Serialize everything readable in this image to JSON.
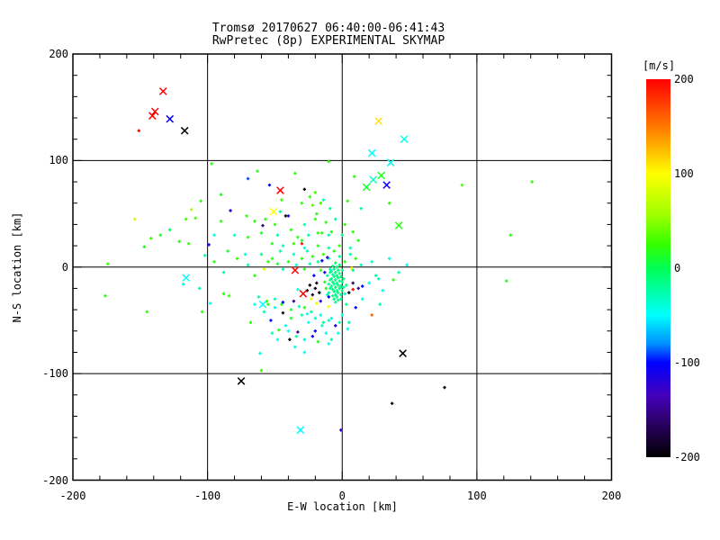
{
  "header": {
    "title_line1": "Tromsø 20170627 06:40:00-06:41:43",
    "title_line2": "RwPretec (8p) EXPERIMENTAL SKYMAP"
  },
  "chart_data": {
    "type": "scatter",
    "title": "Tromsø 20170627 06:40:00-06:41:43 / RwPretec (8p) EXPERIMENTAL SKYMAP",
    "xlabel": "E-W location [km]",
    "ylabel": "N-S location [km]",
    "xlim": [
      -200,
      200
    ],
    "ylim": [
      -200,
      200
    ],
    "xticks": [
      -200,
      -100,
      0,
      100,
      200
    ],
    "yticks": [
      200,
      100,
      0,
      -100,
      -200
    ],
    "minor_tick_step": 20,
    "grid_values": [
      -100,
      0,
      100
    ],
    "grid": "on",
    "background": "#ffffff",
    "axis_color": "#000000",
    "colorbar": {
      "label": "[m/s]",
      "min": -200,
      "max": 200,
      "ticks": [
        200,
        100,
        0,
        -100,
        -200
      ],
      "stops": [
        [
          200,
          "#ff0000"
        ],
        [
          150,
          "#ff7800"
        ],
        [
          100,
          "#ffff00"
        ],
        [
          55,
          "#9bff00"
        ],
        [
          25,
          "#33ff00"
        ],
        [
          0,
          "#00ff55"
        ],
        [
          -25,
          "#00ffa8"
        ],
        [
          -50,
          "#00ffff"
        ],
        [
          -80,
          "#0090ff"
        ],
        [
          -100,
          "#0000ff"
        ],
        [
          -135,
          "#4400bb"
        ],
        [
          -165,
          "#2a0060"
        ],
        [
          -200,
          "#000000"
        ]
      ]
    },
    "cross_points": [
      [
        -133,
        165,
        200
      ],
      [
        -139,
        146,
        200
      ],
      [
        -141,
        142,
        200
      ],
      [
        -128,
        139,
        -100
      ],
      [
        -117,
        128,
        -200
      ],
      [
        -46,
        72,
        200
      ],
      [
        -51,
        52,
        100
      ],
      [
        27,
        137,
        110
      ],
      [
        46,
        120,
        -45
      ],
      [
        22,
        107,
        -45
      ],
      [
        36,
        98,
        -45
      ],
      [
        29,
        86,
        15
      ],
      [
        23,
        82,
        -35
      ],
      [
        18,
        75,
        10
      ],
      [
        33,
        77,
        -110
      ],
      [
        42,
        39,
        20
      ],
      [
        -35,
        -3,
        200
      ],
      [
        -29,
        -25,
        200
      ],
      [
        -116,
        -10,
        -50
      ],
      [
        -59,
        -35,
        -50
      ],
      [
        45,
        -81,
        -200
      ],
      [
        -75,
        -107,
        -200
      ],
      [
        -31,
        -153,
        -50
      ]
    ],
    "dot_points": [
      [
        -151,
        128,
        200
      ],
      [
        -97,
        97,
        20
      ],
      [
        -10,
        99,
        25
      ],
      [
        9,
        85,
        20
      ],
      [
        -63,
        90,
        18
      ],
      [
        -35,
        88,
        22
      ],
      [
        -70,
        83,
        -90
      ],
      [
        -54,
        77,
        -100
      ],
      [
        -20,
        70,
        28
      ],
      [
        -24,
        66,
        20
      ],
      [
        -90,
        68,
        15
      ],
      [
        -105,
        62,
        22
      ],
      [
        -45,
        63,
        24
      ],
      [
        -14,
        63,
        -30
      ],
      [
        -16,
        60,
        25
      ],
      [
        -30,
        60,
        20
      ],
      [
        -9,
        55,
        -25
      ],
      [
        -22,
        58,
        32
      ],
      [
        4,
        62,
        22
      ],
      [
        35,
        60,
        24
      ],
      [
        89,
        77,
        30
      ],
      [
        141,
        80,
        25
      ],
      [
        -112,
        54,
        60
      ],
      [
        -83,
        53,
        -110
      ],
      [
        -28,
        73,
        -200
      ],
      [
        -154,
        45,
        75
      ],
      [
        -116,
        45,
        25
      ],
      [
        -109,
        46,
        30
      ],
      [
        -90,
        43,
        20
      ],
      [
        -71,
        48,
        24
      ],
      [
        -65,
        43,
        18
      ],
      [
        -57,
        45,
        22
      ],
      [
        -50,
        40,
        26
      ],
      [
        -46,
        52,
        -20
      ],
      [
        -40,
        48,
        -100
      ],
      [
        -42,
        48,
        -200
      ],
      [
        -19,
        50,
        20
      ],
      [
        -12,
        42,
        20
      ],
      [
        -5,
        45,
        -22
      ],
      [
        2,
        40,
        24
      ],
      [
        14,
        55,
        -20
      ],
      [
        -128,
        35,
        0
      ],
      [
        -102,
        11,
        -20
      ],
      [
        -121,
        24,
        20
      ],
      [
        -114,
        22,
        26
      ],
      [
        -142,
        27,
        24
      ],
      [
        -147,
        19,
        18
      ],
      [
        -135,
        30,
        15
      ],
      [
        -95,
        30,
        -40
      ],
      [
        -80,
        30,
        -38
      ],
      [
        -70,
        28,
        20
      ],
      [
        -60,
        32,
        15
      ],
      [
        -48,
        30,
        -25
      ],
      [
        -38,
        35,
        20
      ],
      [
        -33,
        28,
        22
      ],
      [
        -28,
        40,
        -30
      ],
      [
        -25,
        30,
        -20
      ],
      [
        -20,
        45,
        24
      ],
      [
        -18,
        32,
        20
      ],
      [
        -15,
        32,
        25
      ],
      [
        -10,
        30,
        -28
      ],
      [
        -8,
        33,
        20
      ],
      [
        0,
        30,
        -20
      ],
      [
        8,
        33,
        22
      ],
      [
        12,
        25,
        18
      ],
      [
        125,
        30,
        20
      ],
      [
        -174,
        3,
        25
      ],
      [
        -59,
        39,
        -160
      ],
      [
        -52,
        22,
        20
      ],
      [
        -44,
        20,
        -30
      ],
      [
        -36,
        22,
        25
      ],
      [
        -30,
        25,
        15
      ],
      [
        -28,
        18,
        -40
      ],
      [
        -18,
        20,
        20
      ],
      [
        -10,
        18,
        -25
      ],
      [
        -2,
        20,
        25
      ],
      [
        6,
        18,
        -30
      ],
      [
        -99,
        21,
        -100
      ],
      [
        -95,
        5,
        20
      ],
      [
        -88,
        -5,
        -20
      ],
      [
        -85,
        15,
        15
      ],
      [
        -78,
        8,
        25
      ],
      [
        -72,
        12,
        -40
      ],
      [
        -70,
        2,
        -25
      ],
      [
        -65,
        -8,
        20
      ],
      [
        -52,
        8,
        20
      ],
      [
        -46,
        15,
        -20
      ],
      [
        -40,
        5,
        25
      ],
      [
        -36,
        12,
        -30
      ],
      [
        -30,
        8,
        20
      ],
      [
        -26,
        15,
        -25
      ],
      [
        -22,
        10,
        20
      ],
      [
        -18,
        5,
        -20
      ],
      [
        -14,
        12,
        25
      ],
      [
        -10,
        8,
        -30
      ],
      [
        -6,
        15,
        20
      ],
      [
        -2,
        10,
        -20
      ],
      [
        2,
        5,
        25
      ],
      [
        6,
        12,
        -25
      ],
      [
        10,
        8,
        20
      ],
      [
        -34,
        2,
        -40
      ],
      [
        -28,
        -2,
        20
      ],
      [
        -24,
        3,
        -20
      ],
      [
        -16,
        -3,
        25
      ],
      [
        -44,
        -2,
        -25
      ],
      [
        -48,
        3,
        15
      ],
      [
        8,
        -3,
        -20
      ],
      [
        14,
        2,
        -30
      ],
      [
        22,
        5,
        -30
      ],
      [
        -60,
        12,
        -20
      ],
      [
        -55,
        5,
        25
      ],
      [
        -58,
        -2,
        85
      ],
      [
        7,
        -1,
        105
      ],
      [
        -30,
        22,
        190
      ],
      [
        -5,
        4,
        -10
      ],
      [
        -7,
        1,
        -15
      ],
      [
        -4,
        0,
        -5
      ],
      [
        -6,
        -2,
        -20
      ],
      [
        -3,
        -3,
        -12
      ],
      [
        -8,
        -4,
        -18
      ],
      [
        -5,
        -5,
        -8
      ],
      [
        -2,
        -6,
        -15
      ],
      [
        -7,
        -7,
        -22
      ],
      [
        -4,
        -8,
        -10
      ],
      [
        -6,
        -9,
        -16
      ],
      [
        -3,
        -10,
        -6
      ],
      [
        -8,
        -11,
        -20
      ],
      [
        -5,
        -12,
        -12
      ],
      [
        -2,
        -13,
        -18
      ],
      [
        -7,
        -14,
        -8
      ],
      [
        -4,
        -15,
        -15
      ],
      [
        -6,
        -16,
        -22
      ],
      [
        -3,
        -17,
        -10
      ],
      [
        -8,
        -18,
        -16
      ],
      [
        -5,
        -19,
        -6
      ],
      [
        -2,
        -20,
        -20
      ],
      [
        -7,
        -21,
        -12
      ],
      [
        -4,
        -22,
        -18
      ],
      [
        -6,
        -23,
        -8
      ],
      [
        -3,
        -24,
        -15
      ],
      [
        -5,
        -26,
        -22
      ],
      [
        -7,
        -27,
        -10
      ],
      [
        -4,
        -28,
        -16
      ],
      [
        -6,
        -30,
        -6
      ],
      [
        -3,
        -31,
        -20
      ],
      [
        -5,
        -33,
        -12
      ],
      [
        -1,
        -9,
        -18
      ],
      [
        -9,
        -12,
        -8
      ],
      [
        0,
        -14,
        -15
      ],
      [
        -10,
        -16,
        -22
      ],
      [
        -1,
        -18,
        -10
      ],
      [
        -9,
        -20,
        -16
      ],
      [
        0,
        -22,
        -6
      ],
      [
        -10,
        -24,
        -20
      ],
      [
        -1,
        -26,
        -12
      ],
      [
        -9,
        -5,
        -18
      ],
      [
        1,
        -11,
        -8
      ],
      [
        -11,
        -8,
        -15
      ],
      [
        1,
        -19,
        -25
      ],
      [
        -2,
        2,
        -8
      ],
      [
        -9,
        -2,
        -25
      ],
      [
        0,
        -3,
        -18
      ],
      [
        -12,
        -20,
        15
      ],
      [
        -11,
        -26,
        -30
      ],
      [
        -13,
        -14,
        20
      ],
      [
        2,
        -25,
        -35
      ],
      [
        3,
        -17,
        -15
      ],
      [
        -1,
        -30,
        -25
      ],
      [
        -24,
        -17,
        -200
      ],
      [
        -20,
        -20,
        -195
      ],
      [
        -17,
        -24,
        -200
      ],
      [
        -22,
        -26,
        -185
      ],
      [
        -26,
        -22,
        -200
      ],
      [
        -19,
        -15,
        -190
      ],
      [
        -11,
        9,
        -120
      ],
      [
        -15,
        6,
        -100
      ],
      [
        -13,
        -5,
        -110
      ],
      [
        -10,
        -28,
        -100
      ],
      [
        -16,
        -32,
        -120
      ],
      [
        -21,
        -8,
        -100
      ],
      [
        8,
        -15,
        -170
      ],
      [
        5,
        -24,
        -190
      ],
      [
        12,
        -20,
        -150
      ],
      [
        8,
        -21,
        195
      ],
      [
        -23,
        -30,
        100
      ],
      [
        -10,
        -37,
        95
      ],
      [
        -19,
        -34,
        90
      ],
      [
        22,
        -45,
        160
      ],
      [
        20,
        -15,
        -40
      ],
      [
        25,
        -8,
        -20
      ],
      [
        30,
        -22,
        -45
      ],
      [
        38,
        -12,
        20
      ],
      [
        35,
        8,
        -40
      ],
      [
        28,
        -35,
        -20
      ],
      [
        15,
        -18,
        -100
      ],
      [
        42,
        -5,
        -25
      ],
      [
        48,
        2,
        -45
      ],
      [
        27,
        -11,
        -30
      ],
      [
        122,
        -13,
        15
      ],
      [
        -88,
        -25,
        20
      ],
      [
        -84,
        -27,
        25
      ],
      [
        -98,
        -34,
        -45
      ],
      [
        -106,
        -20,
        -20
      ],
      [
        -118,
        -16,
        -40
      ],
      [
        -176,
        -27,
        20
      ],
      [
        -145,
        -42,
        25
      ],
      [
        -104,
        -42,
        20
      ],
      [
        -68,
        -52,
        20
      ],
      [
        -65,
        -35,
        -45
      ],
      [
        -62,
        -28,
        -20
      ],
      [
        -58,
        -42,
        -20
      ],
      [
        -56,
        -32,
        25
      ],
      [
        -55,
        -35,
        20
      ],
      [
        -53,
        -50,
        -100
      ],
      [
        -52,
        -62,
        -30
      ],
      [
        -50,
        -38,
        -40
      ],
      [
        -50,
        -30,
        -30
      ],
      [
        -48,
        -68,
        -45
      ],
      [
        -47,
        -59,
        20
      ],
      [
        -45,
        -35,
        15
      ],
      [
        -44,
        -43,
        -195
      ],
      [
        -44,
        -33,
        -100
      ],
      [
        -42,
        -55,
        -45
      ],
      [
        -40,
        -60,
        -45
      ],
      [
        -39,
        -68,
        -190
      ],
      [
        -38,
        -48,
        15
      ],
      [
        -38,
        -40,
        20
      ],
      [
        -36,
        -32,
        -150
      ],
      [
        -34,
        -65,
        -20
      ],
      [
        -33,
        -61,
        -150
      ],
      [
        -33,
        -21,
        -40
      ],
      [
        -32,
        -37,
        -25
      ],
      [
        -30,
        -45,
        -25
      ],
      [
        -28,
        -68,
        -35
      ],
      [
        -28,
        -38,
        20
      ],
      [
        -26,
        -44,
        -45
      ],
      [
        -25,
        -52,
        -45
      ],
      [
        -23,
        -42,
        -20
      ],
      [
        -20,
        -60,
        -100
      ],
      [
        -20,
        -48,
        -30
      ],
      [
        -16,
        -45,
        -45
      ],
      [
        -15,
        -55,
        -35
      ],
      [
        -14,
        -52,
        -20
      ],
      [
        -12,
        -62,
        -45
      ],
      [
        -10,
        -72,
        -45
      ],
      [
        -10,
        -50,
        -30
      ],
      [
        -8,
        -68,
        -25
      ],
      [
        -8,
        -48,
        -40
      ],
      [
        -5,
        -55,
        -110
      ],
      [
        -3,
        -62,
        -45
      ],
      [
        -2,
        -52,
        -25
      ],
      [
        0,
        -45,
        -40
      ],
      [
        4,
        -58,
        -45
      ],
      [
        5,
        -52,
        -20
      ],
      [
        10,
        -38,
        -100
      ],
      [
        15,
        -30,
        -45
      ],
      [
        3,
        -35,
        -20
      ],
      [
        -18,
        -70,
        20
      ],
      [
        -61,
        -81,
        -40
      ],
      [
        -60,
        -97,
        25
      ],
      [
        -1,
        -153,
        -130
      ],
      [
        37,
        -128,
        -200
      ],
      [
        76,
        -113,
        -200
      ],
      [
        -22,
        -65,
        -100
      ],
      [
        -35,
        -75,
        -40
      ],
      [
        -28,
        -80,
        -45
      ]
    ]
  }
}
